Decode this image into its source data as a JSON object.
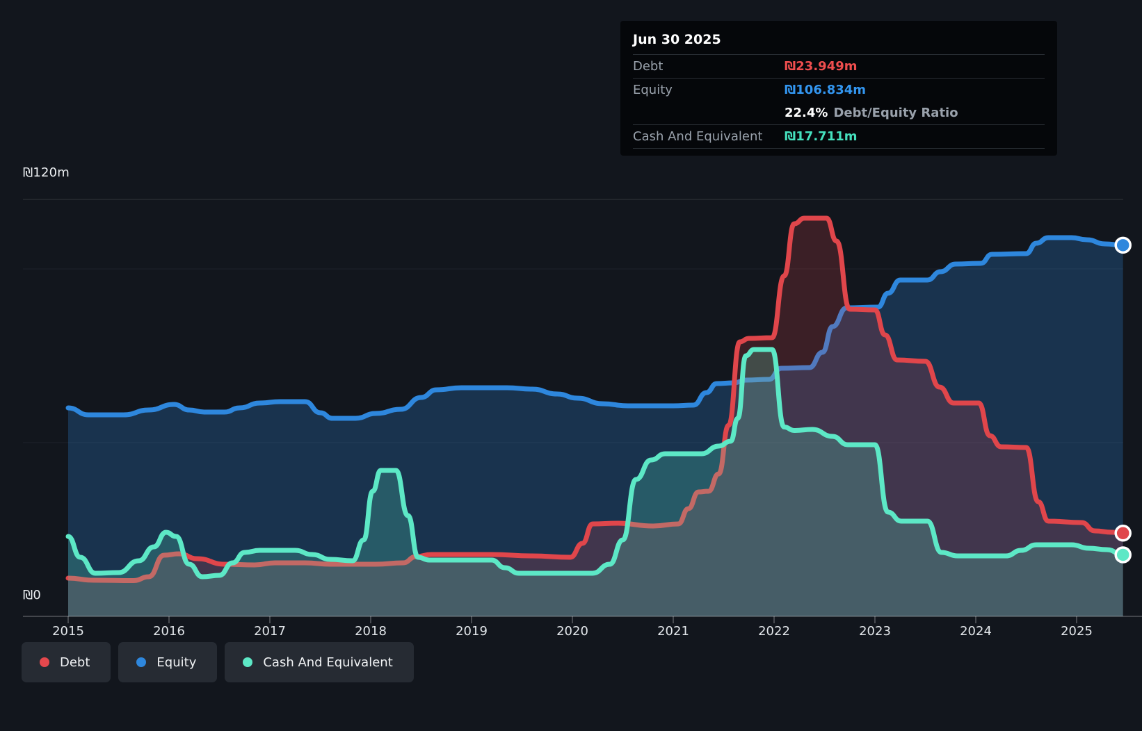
{
  "tooltip": {
    "date": "Jun 30 2025",
    "debt_label": "Debt",
    "debt_value": "₪23.949m",
    "equity_label": "Equity",
    "equity_value": "₪106.834m",
    "ratio_value": "22.4%",
    "ratio_label": "Debt/Equity Ratio",
    "cash_label": "Cash And Equivalent",
    "cash_value": "₪17.711m"
  },
  "axis": {
    "y_max_label": "₪120m",
    "y_min_label": "₪0",
    "years": [
      "2015",
      "2016",
      "2017",
      "2018",
      "2019",
      "2020",
      "2021",
      "2022",
      "2023",
      "2024",
      "2025"
    ]
  },
  "legend": {
    "items": [
      {
        "key": "debt",
        "label": "Debt",
        "color": "#e5484d"
      },
      {
        "key": "equity",
        "label": "Equity",
        "color": "#2e87dd"
      },
      {
        "key": "cash",
        "label": "Cash And Equivalent",
        "color": "#5de8c6"
      }
    ]
  },
  "colors": {
    "background": "#12161d",
    "gridline_strong": "rgba(255,255,255,0.14)",
    "gridline_faint": "rgba(255,255,255,0.06)",
    "axis_line": "rgba(255,255,255,0.28)",
    "tick": "rgba(255,255,255,0.30)",
    "debt_value_text": "#ef4e4e",
    "equity_value_text": "#3396f0",
    "cash_value_text": "#45e0bd"
  },
  "chart_data": {
    "type": "area",
    "x_range_years": [
      2015.0,
      2025.46
    ],
    "ylim": [
      0,
      120
    ],
    "y_unit": "₪m",
    "gridline_values_m": [
      120,
      100,
      50,
      0
    ],
    "last_point_date": "Jun 30 2025",
    "legend_position": "bottom-left",
    "series": [
      {
        "name": "Equity",
        "key": "equity",
        "color": "#2e87dd",
        "fill_opacity": 0.26,
        "points": [
          [
            2015.0,
            60
          ],
          [
            2015.2,
            58
          ],
          [
            2015.55,
            58
          ],
          [
            2015.8,
            59.4
          ],
          [
            2016.05,
            61
          ],
          [
            2016.2,
            59.4
          ],
          [
            2016.35,
            58.8
          ],
          [
            2016.55,
            58.8
          ],
          [
            2016.7,
            60
          ],
          [
            2016.9,
            61.4
          ],
          [
            2017.1,
            61.8
          ],
          [
            2017.35,
            61.8
          ],
          [
            2017.5,
            58.6
          ],
          [
            2017.62,
            57
          ],
          [
            2017.85,
            57
          ],
          [
            2018.05,
            58.4
          ],
          [
            2018.3,
            59.6
          ],
          [
            2018.5,
            63
          ],
          [
            2018.65,
            65.2
          ],
          [
            2018.9,
            65.8
          ],
          [
            2019.35,
            65.8
          ],
          [
            2019.6,
            65.4
          ],
          [
            2019.85,
            64
          ],
          [
            2020.05,
            62.8
          ],
          [
            2020.3,
            61.2
          ],
          [
            2020.55,
            60.6
          ],
          [
            2021.0,
            60.6
          ],
          [
            2021.2,
            60.8
          ],
          [
            2021.33,
            64.4
          ],
          [
            2021.43,
            67
          ],
          [
            2021.6,
            67.2
          ],
          [
            2021.72,
            68
          ],
          [
            2021.95,
            68.2
          ],
          [
            2022.07,
            71.4
          ],
          [
            2022.35,
            71.6
          ],
          [
            2022.48,
            76
          ],
          [
            2022.58,
            83.4
          ],
          [
            2022.72,
            88.8
          ],
          [
            2023.03,
            89
          ],
          [
            2023.13,
            93
          ],
          [
            2023.25,
            96.8
          ],
          [
            2023.52,
            96.8
          ],
          [
            2023.65,
            99.2
          ],
          [
            2023.8,
            101.4
          ],
          [
            2024.05,
            101.6
          ],
          [
            2024.16,
            104.2
          ],
          [
            2024.5,
            104.4
          ],
          [
            2024.6,
            107.4
          ],
          [
            2024.72,
            109
          ],
          [
            2024.95,
            109
          ],
          [
            2025.1,
            108.4
          ],
          [
            2025.28,
            107.2
          ],
          [
            2025.46,
            106.834
          ]
        ]
      },
      {
        "name": "Debt",
        "key": "debt",
        "color": "#e0464b",
        "fill_opacity": 0.2,
        "points": [
          [
            2015.0,
            11
          ],
          [
            2015.25,
            10.4
          ],
          [
            2015.65,
            10.3
          ],
          [
            2015.8,
            11.4
          ],
          [
            2015.95,
            17.6
          ],
          [
            2016.1,
            18
          ],
          [
            2016.28,
            16.6
          ],
          [
            2016.55,
            15
          ],
          [
            2016.85,
            14.8
          ],
          [
            2017.05,
            15.4
          ],
          [
            2017.35,
            15.4
          ],
          [
            2017.6,
            15
          ],
          [
            2018.05,
            15
          ],
          [
            2018.32,
            15.4
          ],
          [
            2018.45,
            17.2
          ],
          [
            2018.6,
            17.8
          ],
          [
            2019.2,
            17.8
          ],
          [
            2019.6,
            17.4
          ],
          [
            2019.98,
            17
          ],
          [
            2020.1,
            21
          ],
          [
            2020.2,
            26.6
          ],
          [
            2020.45,
            26.8
          ],
          [
            2020.8,
            26
          ],
          [
            2021.05,
            26.6
          ],
          [
            2021.15,
            31
          ],
          [
            2021.25,
            35.8
          ],
          [
            2021.35,
            36
          ],
          [
            2021.45,
            41
          ],
          [
            2021.55,
            55
          ],
          [
            2021.66,
            79
          ],
          [
            2021.75,
            80
          ],
          [
            2021.98,
            80.2
          ],
          [
            2022.1,
            98
          ],
          [
            2022.2,
            113
          ],
          [
            2022.3,
            114.6
          ],
          [
            2022.52,
            114.6
          ],
          [
            2022.62,
            108
          ],
          [
            2022.75,
            88.4
          ],
          [
            2023.0,
            88.2
          ],
          [
            2023.1,
            81
          ],
          [
            2023.22,
            73.8
          ],
          [
            2023.5,
            73.4
          ],
          [
            2023.64,
            66
          ],
          [
            2023.78,
            61.4
          ],
          [
            2024.03,
            61.4
          ],
          [
            2024.14,
            52
          ],
          [
            2024.25,
            48.8
          ],
          [
            2024.5,
            48.6
          ],
          [
            2024.62,
            33
          ],
          [
            2024.72,
            27.4
          ],
          [
            2025.05,
            27
          ],
          [
            2025.18,
            24.6
          ],
          [
            2025.35,
            24.2
          ],
          [
            2025.46,
            23.949
          ]
        ]
      },
      {
        "name": "Cash And Equivalent",
        "key": "cash",
        "color": "#5de8c6",
        "fill_opacity": 0.22,
        "points": [
          [
            2015.0,
            23
          ],
          [
            2015.12,
            17
          ],
          [
            2015.27,
            12.4
          ],
          [
            2015.5,
            12.6
          ],
          [
            2015.7,
            16
          ],
          [
            2015.85,
            20
          ],
          [
            2015.97,
            24.2
          ],
          [
            2016.07,
            23
          ],
          [
            2016.2,
            15
          ],
          [
            2016.33,
            11.4
          ],
          [
            2016.5,
            11.8
          ],
          [
            2016.63,
            15.4
          ],
          [
            2016.75,
            18.4
          ],
          [
            2016.9,
            19
          ],
          [
            2017.25,
            19
          ],
          [
            2017.42,
            17.8
          ],
          [
            2017.6,
            16.4
          ],
          [
            2017.82,
            16
          ],
          [
            2017.93,
            22
          ],
          [
            2018.02,
            36
          ],
          [
            2018.1,
            42
          ],
          [
            2018.25,
            42
          ],
          [
            2018.37,
            29
          ],
          [
            2018.47,
            17
          ],
          [
            2018.58,
            16.2
          ],
          [
            2019.2,
            16.2
          ],
          [
            2019.33,
            14
          ],
          [
            2019.47,
            12.4
          ],
          [
            2020.2,
            12.4
          ],
          [
            2020.37,
            15
          ],
          [
            2020.5,
            22
          ],
          [
            2020.63,
            39.4
          ],
          [
            2020.78,
            45
          ],
          [
            2020.92,
            46.8
          ],
          [
            2021.28,
            46.8
          ],
          [
            2021.45,
            49
          ],
          [
            2021.57,
            50.4
          ],
          [
            2021.64,
            57
          ],
          [
            2021.72,
            75
          ],
          [
            2021.8,
            76.8
          ],
          [
            2021.98,
            76.8
          ],
          [
            2022.1,
            54.5
          ],
          [
            2022.2,
            53.5
          ],
          [
            2022.38,
            53.8
          ],
          [
            2022.58,
            51.8
          ],
          [
            2022.73,
            49.4
          ],
          [
            2023.0,
            49.4
          ],
          [
            2023.13,
            30
          ],
          [
            2023.26,
            27.4
          ],
          [
            2023.52,
            27.4
          ],
          [
            2023.66,
            18.4
          ],
          [
            2023.82,
            17.4
          ],
          [
            2024.3,
            17.4
          ],
          [
            2024.45,
            19
          ],
          [
            2024.6,
            20.6
          ],
          [
            2024.95,
            20.6
          ],
          [
            2025.12,
            19.6
          ],
          [
            2025.3,
            19.2
          ],
          [
            2025.46,
            17.711
          ]
        ]
      }
    ]
  }
}
